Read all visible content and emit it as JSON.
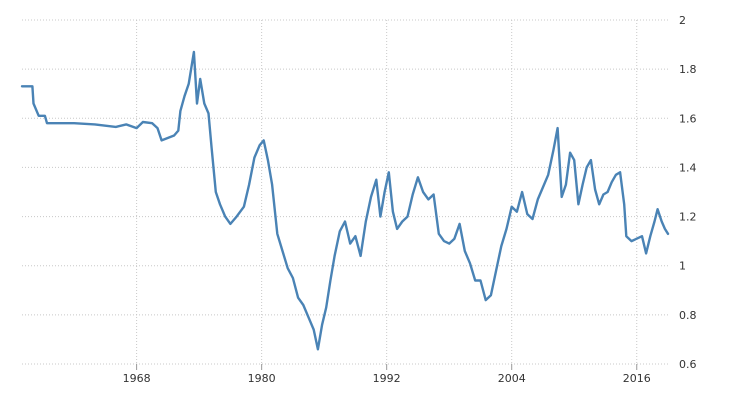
{
  "chart_data": {
    "type": "line",
    "title": "",
    "xlabel": "",
    "ylabel": "",
    "x_ticks": [
      1968,
      1980,
      1992,
      2004,
      2016
    ],
    "y_ticks": [
      0.6,
      0.8,
      1,
      1.2,
      1.4,
      1.6,
      1.8,
      2
    ],
    "xlim": [
      1957.0,
      2019.0
    ],
    "ylim": [
      0.6,
      2.0
    ],
    "grid": true,
    "series": [
      {
        "color": "#4a83b5",
        "points": [
          [
            1957.0,
            1.73
          ],
          [
            1958.0,
            1.73
          ],
          [
            1958.1,
            1.66
          ],
          [
            1958.6,
            1.61
          ],
          [
            1959.2,
            1.61
          ],
          [
            1959.4,
            1.58
          ],
          [
            1960.5,
            1.58
          ],
          [
            1962,
            1.58
          ],
          [
            1964,
            1.575
          ],
          [
            1965,
            1.57
          ],
          [
            1966,
            1.565
          ],
          [
            1967,
            1.575
          ],
          [
            1968,
            1.56
          ],
          [
            1968.6,
            1.585
          ],
          [
            1969.5,
            1.58
          ],
          [
            1970.0,
            1.56
          ],
          [
            1970.4,
            1.51
          ],
          [
            1971.6,
            1.53
          ],
          [
            1972.0,
            1.55
          ],
          [
            1972.2,
            1.63
          ],
          [
            1972.6,
            1.69
          ],
          [
            1973.0,
            1.74
          ],
          [
            1973.5,
            1.87
          ],
          [
            1973.8,
            1.66
          ],
          [
            1974.1,
            1.76
          ],
          [
            1974.5,
            1.66
          ],
          [
            1974.9,
            1.62
          ],
          [
            1975.2,
            1.48
          ],
          [
            1975.6,
            1.3
          ],
          [
            1976.0,
            1.25
          ],
          [
            1976.5,
            1.2
          ],
          [
            1977.0,
            1.17
          ],
          [
            1977.6,
            1.2
          ],
          [
            1978.3,
            1.24
          ],
          [
            1978.8,
            1.33
          ],
          [
            1979.3,
            1.44
          ],
          [
            1979.8,
            1.49
          ],
          [
            1980.2,
            1.51
          ],
          [
            1980.6,
            1.43
          ],
          [
            1981.0,
            1.33
          ],
          [
            1981.5,
            1.13
          ],
          [
            1982.0,
            1.06
          ],
          [
            1982.5,
            0.99
          ],
          [
            1983.0,
            0.95
          ],
          [
            1983.5,
            0.87
          ],
          [
            1984.0,
            0.84
          ],
          [
            1984.5,
            0.79
          ],
          [
            1985.0,
            0.74
          ],
          [
            1985.4,
            0.66
          ],
          [
            1985.8,
            0.76
          ],
          [
            1986.2,
            0.83
          ],
          [
            1986.6,
            0.94
          ],
          [
            1987.0,
            1.04
          ],
          [
            1987.5,
            1.14
          ],
          [
            1988.0,
            1.18
          ],
          [
            1988.5,
            1.09
          ],
          [
            1989.0,
            1.12
          ],
          [
            1989.5,
            1.04
          ],
          [
            1990.0,
            1.18
          ],
          [
            1990.5,
            1.28
          ],
          [
            1991.0,
            1.35
          ],
          [
            1991.4,
            1.2
          ],
          [
            1991.8,
            1.3
          ],
          [
            1992.2,
            1.38
          ],
          [
            1992.6,
            1.22
          ],
          [
            1993.0,
            1.15
          ],
          [
            1993.5,
            1.18
          ],
          [
            1994.0,
            1.2
          ],
          [
            1994.5,
            1.29
          ],
          [
            1995.0,
            1.36
          ],
          [
            1995.5,
            1.3
          ],
          [
            1996.0,
            1.27
          ],
          [
            1996.5,
            1.29
          ],
          [
            1997.0,
            1.13
          ],
          [
            1997.5,
            1.1
          ],
          [
            1998.0,
            1.09
          ],
          [
            1998.5,
            1.11
          ],
          [
            1999.0,
            1.17
          ],
          [
            1999.5,
            1.06
          ],
          [
            2000.0,
            1.01
          ],
          [
            2000.5,
            0.94
          ],
          [
            2001.0,
            0.94
          ],
          [
            2001.5,
            0.86
          ],
          [
            2002.0,
            0.88
          ],
          [
            2002.5,
            0.98
          ],
          [
            2003.0,
            1.08
          ],
          [
            2003.5,
            1.15
          ],
          [
            2004.0,
            1.24
          ],
          [
            2004.5,
            1.22
          ],
          [
            2005.0,
            1.3
          ],
          [
            2005.5,
            1.21
          ],
          [
            2006.0,
            1.19
          ],
          [
            2006.5,
            1.27
          ],
          [
            2007.0,
            1.32
          ],
          [
            2007.5,
            1.37
          ],
          [
            2008.0,
            1.47
          ],
          [
            2008.4,
            1.56
          ],
          [
            2008.8,
            1.28
          ],
          [
            2009.2,
            1.33
          ],
          [
            2009.6,
            1.46
          ],
          [
            2010.0,
            1.43
          ],
          [
            2010.4,
            1.25
          ],
          [
            2010.8,
            1.33
          ],
          [
            2011.2,
            1.4
          ],
          [
            2011.6,
            1.43
          ],
          [
            2012.0,
            1.31
          ],
          [
            2012.4,
            1.25
          ],
          [
            2012.8,
            1.29
          ],
          [
            2013.2,
            1.3
          ],
          [
            2013.6,
            1.34
          ],
          [
            2014.0,
            1.37
          ],
          [
            2014.4,
            1.38
          ],
          [
            2014.8,
            1.25
          ],
          [
            2015.0,
            1.12
          ],
          [
            2015.5,
            1.1
          ],
          [
            2016.0,
            1.11
          ],
          [
            2016.5,
            1.12
          ],
          [
            2016.9,
            1.05
          ],
          [
            2017.3,
            1.12
          ],
          [
            2017.7,
            1.18
          ],
          [
            2018.0,
            1.23
          ],
          [
            2018.4,
            1.18
          ],
          [
            2018.7,
            1.15
          ],
          [
            2019.0,
            1.13
          ]
        ]
      }
    ]
  }
}
